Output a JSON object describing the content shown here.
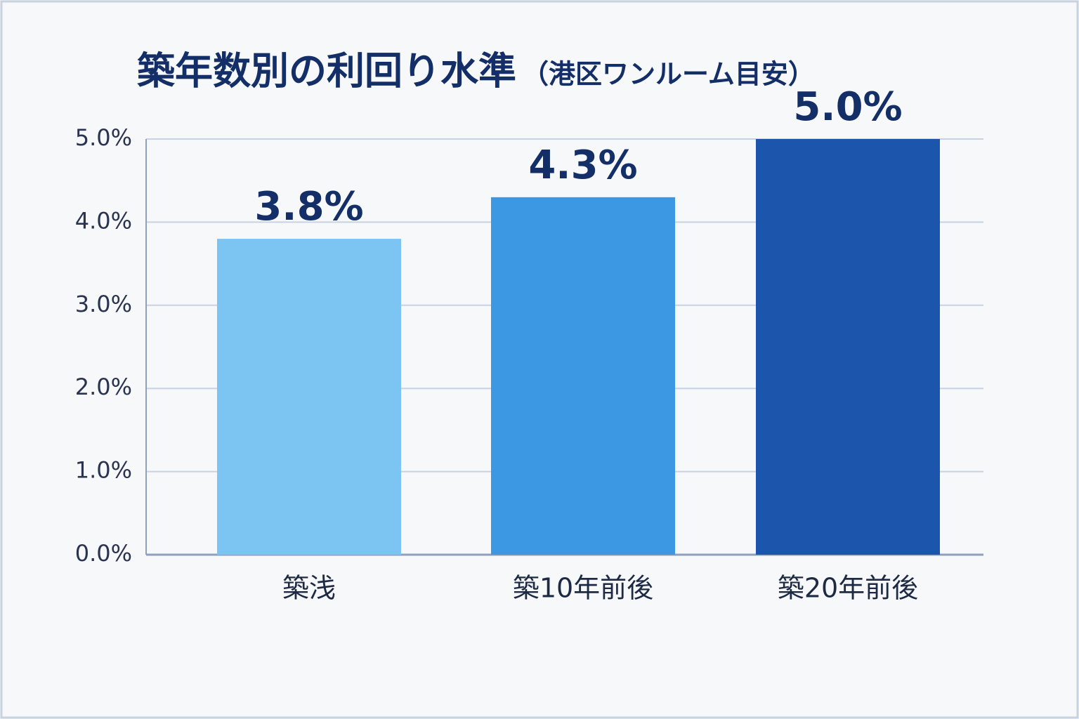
{
  "chart_data": {
    "type": "bar",
    "title": "築年数別の利回り水準",
    "subtitle": "（港区ワンルーム目安）",
    "categories": [
      "築浅",
      "築10年前後",
      "築20年前後"
    ],
    "values": [
      3.8,
      4.3,
      5.0
    ],
    "value_labels": [
      "3.8%",
      "4.3%",
      "5.0%"
    ],
    "colors": [
      "#7cc4f2",
      "#3d98e4",
      "#1c56ac"
    ],
    "ylim": [
      0,
      5
    ],
    "yticks": [
      {
        "value": 0,
        "label": "0.0%"
      },
      {
        "value": 1,
        "label": "1.0%"
      },
      {
        "value": 2,
        "label": "2.0%"
      },
      {
        "value": 3,
        "label": "3.0%"
      },
      {
        "value": 4,
        "label": "4.0%"
      },
      {
        "value": 5,
        "label": "5.0%"
      }
    ],
    "grid": true
  }
}
